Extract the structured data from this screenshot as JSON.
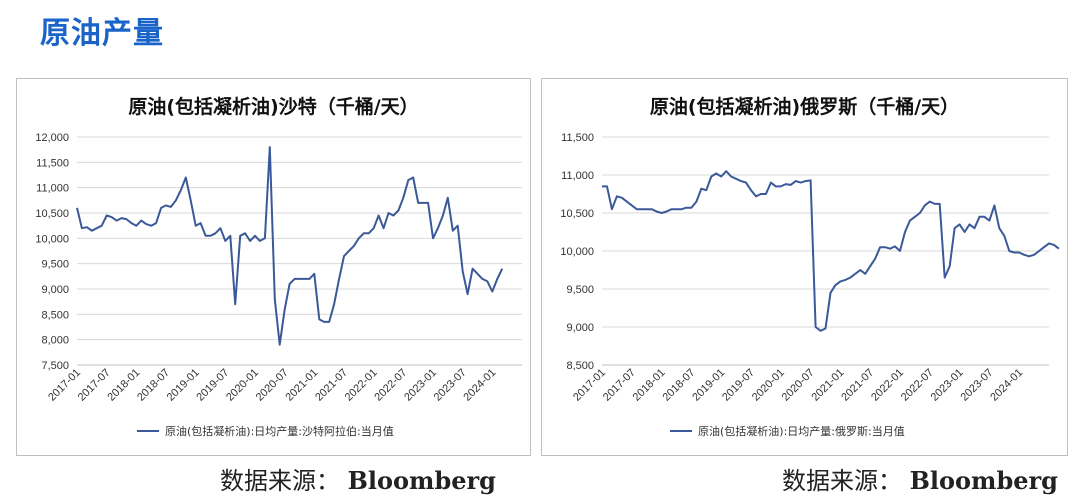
{
  "page": {
    "title": "原油产量"
  },
  "colors": {
    "title": "#1a63c8",
    "line": "#3b5998",
    "grid": "#d9d9d9"
  },
  "charts": [
    {
      "id": "left",
      "source_label": "数据来源：",
      "source_name": "Bloomberg"
    },
    {
      "id": "right",
      "source_label": "数据来源：",
      "source_name": "Bloomberg"
    }
  ],
  "chart_data": [
    {
      "type": "line",
      "title": "原油(包括凝析油)沙特（千桶/天）",
      "ylim": [
        7500,
        12000
      ],
      "yticks": [
        "7,500",
        "8,000",
        "8,500",
        "9,000",
        "9,500",
        "10,000",
        "10,500",
        "11,000",
        "11,500",
        "12,000"
      ],
      "ytick_values": [
        7500,
        8000,
        8500,
        9000,
        9500,
        10000,
        10500,
        11000,
        11500,
        12000
      ],
      "xticks": [
        "2017-01",
        "2017-07",
        "2018-01",
        "2018-07",
        "2019-01",
        "2019-07",
        "2020-01",
        "2020-07",
        "2021-01",
        "2021-07",
        "2022-01",
        "2022-07",
        "2023-01",
        "2023-07",
        "2024-01"
      ],
      "x_start": "2017-01",
      "grid": true,
      "legend_position": "bottom",
      "series": [
        {
          "name": "原油(包括凝析油):日均产量:沙特阿拉伯:当月值",
          "values": [
            10600,
            10200,
            10220,
            10150,
            10200,
            10250,
            10450,
            10420,
            10350,
            10400,
            10380,
            10300,
            10250,
            10350,
            10280,
            10250,
            10300,
            10600,
            10650,
            10620,
            10750,
            10950,
            11200,
            10750,
            10250,
            10300,
            10050,
            10050,
            10100,
            10200,
            9950,
            10050,
            8700,
            10050,
            10100,
            9950,
            10050,
            9950,
            10000,
            11800,
            8800,
            7900,
            8600,
            9100,
            9200,
            9200,
            9200,
            9200,
            9300,
            8400,
            8350,
            8350,
            8700,
            9200,
            9650,
            9750,
            9850,
            10000,
            10100,
            10100,
            10200,
            10450,
            10200,
            10500,
            10450,
            10550,
            10800,
            11150,
            11200,
            10700,
            10700,
            10700,
            10000,
            10200,
            10450,
            10800,
            10150,
            10250,
            9350,
            8900,
            9400,
            9300,
            9200,
            9150,
            8950,
            9200,
            9400
          ]
        }
      ]
    },
    {
      "type": "line",
      "title": "原油(包括凝析油)俄罗斯（千桶/天）",
      "ylim": [
        8500,
        11500
      ],
      "yticks": [
        "8,500",
        "9,000",
        "9,500",
        "10,000",
        "10,500",
        "11,000",
        "11,500"
      ],
      "ytick_values": [
        8500,
        9000,
        9500,
        10000,
        10500,
        11000,
        11500
      ],
      "xticks": [
        "2017-01",
        "2017-07",
        "2018-01",
        "2018-07",
        "2019-01",
        "2019-07",
        "2020-01",
        "2020-07",
        "2021-01",
        "2021-07",
        "2022-01",
        "2022-07",
        "2023-01",
        "2023-07",
        "2024-01"
      ],
      "x_start": "2017-01",
      "grid": true,
      "legend_position": "bottom",
      "series": [
        {
          "name": "原油(包括凝析油):日均产量:俄罗斯:当月值",
          "values": [
            10850,
            10850,
            10550,
            10720,
            10700,
            10650,
            10600,
            10550,
            10550,
            10550,
            10550,
            10520,
            10500,
            10520,
            10550,
            10550,
            10550,
            10570,
            10570,
            10650,
            10820,
            10800,
            10980,
            11020,
            10980,
            11050,
            10980,
            10950,
            10920,
            10900,
            10800,
            10720,
            10750,
            10750,
            10900,
            10850,
            10850,
            10880,
            10870,
            10920,
            10900,
            10920,
            10930,
            9000,
            8950,
            8980,
            9450,
            9550,
            9600,
            9620,
            9650,
            9700,
            9750,
            9700,
            9800,
            9900,
            10050,
            10050,
            10030,
            10060,
            10000,
            10250,
            10400,
            10450,
            10500,
            10600,
            10650,
            10620,
            10620,
            9650,
            9800,
            10300,
            10350,
            10250,
            10350,
            10300,
            10450,
            10450,
            10400,
            10600,
            10300,
            10200,
            10000,
            9980,
            9980,
            9950,
            9930,
            9950,
            10000,
            10050,
            10100,
            10080,
            10030
          ]
        }
      ]
    }
  ]
}
